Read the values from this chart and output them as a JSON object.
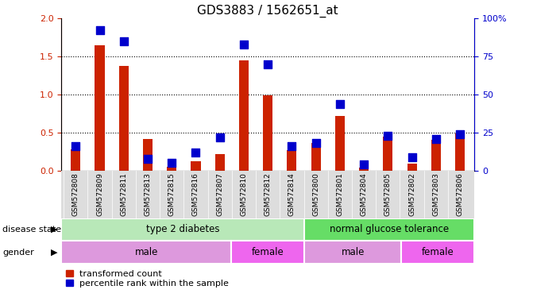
{
  "title": "GDS3883 / 1562651_at",
  "samples": [
    "GSM572808",
    "GSM572809",
    "GSM572811",
    "GSM572813",
    "GSM572815",
    "GSM572816",
    "GSM572807",
    "GSM572810",
    "GSM572812",
    "GSM572814",
    "GSM572800",
    "GSM572801",
    "GSM572804",
    "GSM572805",
    "GSM572802",
    "GSM572803",
    "GSM572806"
  ],
  "red_values": [
    0.28,
    1.65,
    1.38,
    0.42,
    0.05,
    0.13,
    0.22,
    1.45,
    0.99,
    0.27,
    0.37,
    0.72,
    0.04,
    0.45,
    0.09,
    0.41,
    0.49
  ],
  "blue_pct": [
    16,
    92,
    85,
    8,
    5,
    12,
    22,
    83,
    70,
    16,
    18,
    44,
    4,
    23,
    9,
    21,
    24
  ],
  "ylim_left": [
    0,
    2
  ],
  "ylim_right": [
    0,
    100
  ],
  "yticks_left": [
    0,
    0.5,
    1.0,
    1.5,
    2.0
  ],
  "yticks_right": [
    0,
    25,
    50,
    75,
    100
  ],
  "disease_state_groups": [
    {
      "label": "type 2 diabetes",
      "start": 0,
      "end": 10,
      "color": "#b8e8b8"
    },
    {
      "label": "normal glucose tolerance",
      "start": 10,
      "end": 17,
      "color": "#66dd66"
    }
  ],
  "gender_groups": [
    {
      "label": "male",
      "start": 0,
      "end": 7,
      "color": "#dd99dd"
    },
    {
      "label": "female",
      "start": 7,
      "end": 10,
      "color": "#ee66ee"
    },
    {
      "label": "male",
      "start": 10,
      "end": 14,
      "color": "#dd99dd"
    },
    {
      "label": "female",
      "start": 14,
      "end": 17,
      "color": "#ee66ee"
    }
  ],
  "bar_color": "#cc2200",
  "dot_color": "#0000cc",
  "background_color": "#ffffff",
  "tick_label_color_left": "#cc2200",
  "tick_label_color_right": "#0000cc",
  "label_row1": "disease state",
  "label_row2": "gender",
  "legend_red": "transformed count",
  "legend_blue": "percentile rank within the sample",
  "bar_width": 0.4,
  "dot_size": 60,
  "grid_dotted_vals": [
    0.5,
    1.0,
    1.5
  ]
}
